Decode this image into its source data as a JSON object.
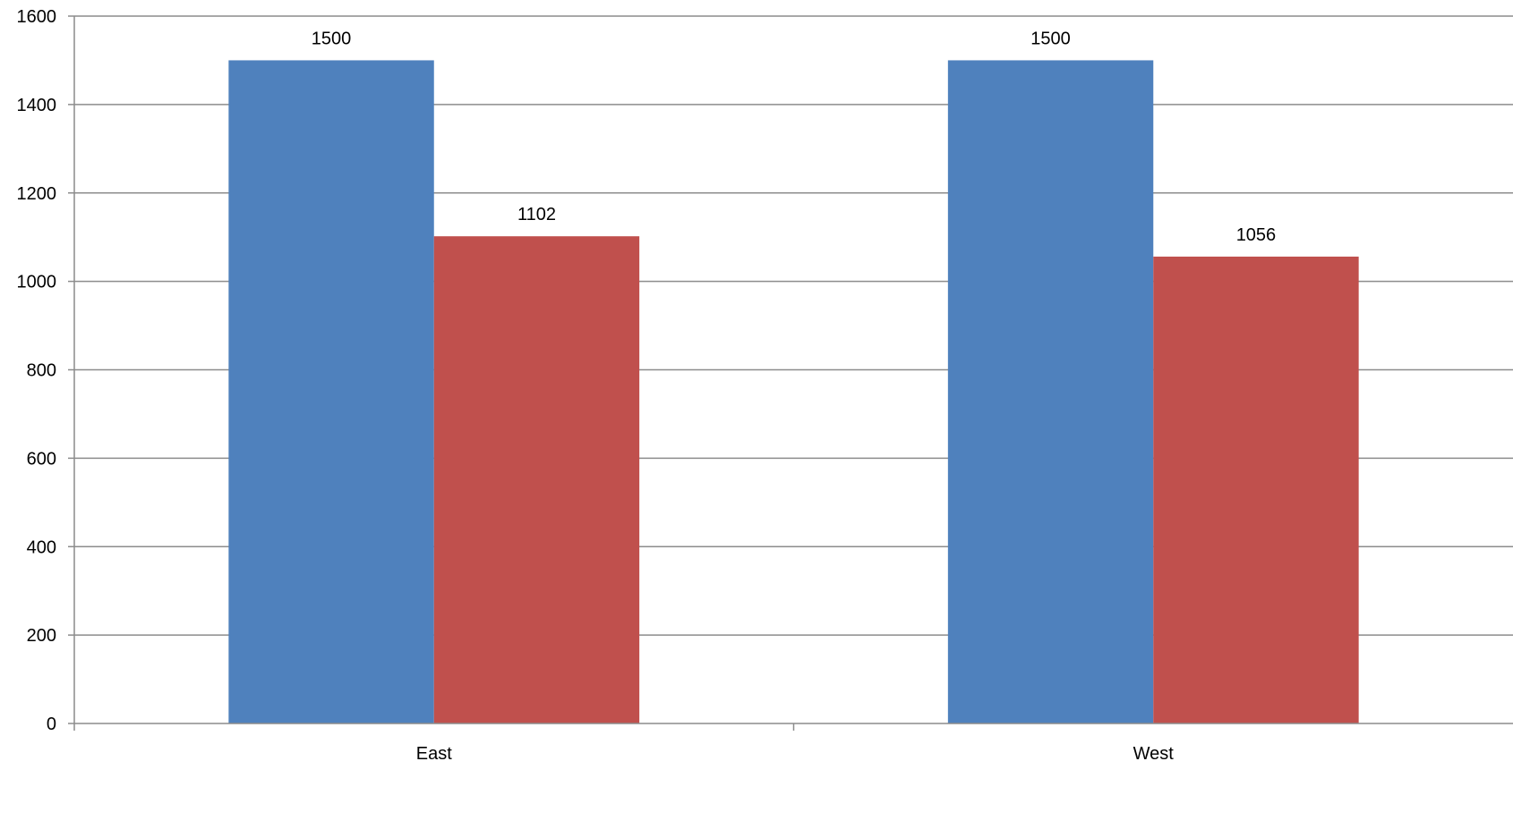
{
  "chart_data": {
    "type": "bar",
    "title": "",
    "xlabel": "",
    "ylabel": "",
    "categories": [
      "East",
      "West"
    ],
    "series": [
      {
        "values": [
          1500,
          1500
        ],
        "color": "#4F81BD"
      },
      {
        "values": [
          1102,
          1056
        ],
        "color": "#C0504D"
      }
    ],
    "ylim": [
      0,
      1600
    ],
    "yticks": [
      0,
      200,
      400,
      600,
      800,
      1000,
      1200,
      1400,
      1600
    ],
    "grid": true,
    "legend": "none",
    "data_labels": true
  },
  "colors": {
    "grid": "#8C8C8C",
    "axis": "#8C8C8C",
    "background": "#FFFFFF"
  }
}
